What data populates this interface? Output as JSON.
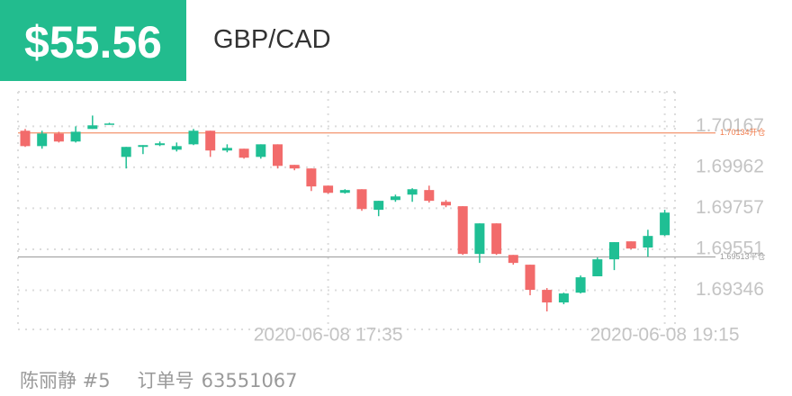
{
  "header": {
    "price": "$55.56",
    "pair": "GBP/CAD"
  },
  "footer": {
    "trader": "陈丽静 #5",
    "order_label": "订单号",
    "order_id": "63551067"
  },
  "chart_data": {
    "type": "candlestick",
    "up_color": "#1fbf94",
    "down_color": "#f26b6b",
    "categories": [
      null,
      null,
      null,
      null,
      null,
      null,
      null,
      null,
      null,
      null,
      null,
      null,
      null,
      null,
      null,
      null,
      null,
      null,
      "2020-06-08 17:35",
      null,
      null,
      null,
      null,
      null,
      null,
      null,
      null,
      null,
      null,
      null,
      null,
      null,
      null,
      null,
      null,
      null,
      null,
      null,
      "2020-06-08 19:15"
    ],
    "open": [
      1.70145,
      1.70068,
      1.70131,
      1.70091,
      1.70154,
      1.70176,
      1.70014,
      1.70064,
      1.70073,
      1.7005,
      1.70077,
      1.70145,
      1.70046,
      1.70055,
      1.70014,
      1.70077,
      1.69974,
      1.69956,
      1.6987,
      1.69834,
      1.69852,
      1.69749,
      1.69798,
      1.69825,
      1.69848,
      1.69789,
      1.69767,
      1.69528,
      1.69681,
      1.69523,
      1.69474,
      1.69348,
      1.69285,
      1.69334,
      1.69416,
      1.69501,
      1.69591,
      1.6956,
      1.69622
    ],
    "high": [
      1.70154,
      1.70145,
      1.7014,
      1.70167,
      1.70221,
      1.70185,
      1.70064,
      1.70073,
      1.70091,
      1.70086,
      1.70154,
      1.70145,
      1.70077,
      1.70055,
      1.70077,
      1.70077,
      1.69974,
      1.69956,
      1.6987,
      1.69852,
      1.69852,
      1.69794,
      1.69825,
      1.69857,
      1.6987,
      1.69798,
      1.69767,
      1.69681,
      1.69681,
      1.69523,
      1.69474,
      1.69357,
      1.69334,
      1.6942,
      1.6951,
      1.69587,
      1.69591,
      1.69649,
      1.69749
    ],
    "low": [
      1.70064,
      1.70055,
      1.70086,
      1.70086,
      1.70154,
      1.70176,
      1.69956,
      1.70028,
      1.70068,
      1.70041,
      1.70073,
      1.70014,
      1.70037,
      1.70005,
      1.70005,
      1.69956,
      1.69947,
      1.69843,
      1.6983,
      1.6983,
      1.69744,
      1.69717,
      1.69789,
      1.69789,
      1.69785,
      1.69762,
      1.69523,
      1.69483,
      1.69523,
      1.69474,
      1.69321,
      1.6924,
      1.69276,
      1.6933,
      1.69416,
      1.69447,
      1.69551,
      1.69514,
      1.69618
    ],
    "close": [
      1.70068,
      1.70131,
      1.70091,
      1.7014,
      1.70172,
      1.70181,
      1.70064,
      1.70073,
      1.70082,
      1.70068,
      1.70145,
      1.70046,
      1.70059,
      1.7001,
      1.70077,
      1.69969,
      1.69956,
      1.69866,
      1.69834,
      1.69848,
      1.69753,
      1.69794,
      1.69816,
      1.69852,
      1.69794,
      1.69771,
      1.69528,
      1.69681,
      1.69528,
      1.69483,
      1.69348,
      1.69285,
      1.6933,
      1.69411,
      1.69501,
      1.69587,
      1.69555,
      1.69618,
      1.69735
    ],
    "ylim": [
      1.6915,
      1.7034
    ],
    "yticks": [
      1.70167,
      1.69962,
      1.69757,
      1.69551,
      1.69346
    ],
    "grid": true,
    "reference_lines": [
      {
        "value": 1.70134,
        "label": "1.70134开仓",
        "color": "#f07a4a"
      },
      {
        "value": 1.69513,
        "label": "1.69513平仓",
        "color": "#9a9a9a"
      }
    ]
  }
}
